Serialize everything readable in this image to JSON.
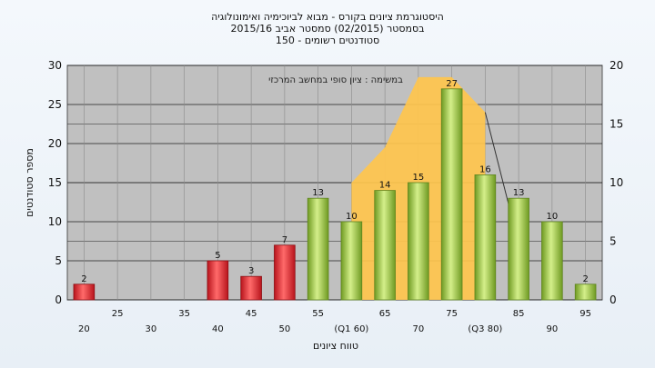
{
  "header": {
    "title_line1": "היסטוגרמת ציונים בקורס - מבוא לביוכימיה ואימונולוגיה",
    "title_line2": "בסמסטר  (02/2015)  סמסטר אביב 2015/16",
    "title_line3": "סטודנטים רשומים - 150"
  },
  "chart_data": {
    "type": "bar",
    "title": "היסטוגרמת ציונים בקורס - מבוא לביוכימיה ואימונולוגיה",
    "annotation": "במשימה : ציון סופי במחשב המרכזי",
    "xlabel": "טווח ציונים",
    "ylabel": "מספר סטודנטים",
    "categories": [
      "20",
      "25",
      "30",
      "35",
      "40",
      "45",
      "50",
      "55",
      "60",
      "65",
      "70",
      "75",
      "80",
      "85",
      "90",
      "95"
    ],
    "category_labels": [
      "20",
      "25",
      "30",
      "35",
      "40",
      "45",
      "50",
      "55",
      "(Q1 60)",
      "65",
      "70",
      "75",
      "(Q3 80)",
      "85",
      "90",
      "95"
    ],
    "values": [
      2,
      0,
      0,
      0,
      5,
      3,
      7,
      13,
      10,
      14,
      15,
      27,
      16,
      13,
      10,
      2
    ],
    "bar_colors": [
      "red",
      "red",
      "red",
      "red",
      "red",
      "red",
      "red",
      "green",
      "green",
      "green",
      "green",
      "green",
      "green",
      "green",
      "green",
      "green"
    ],
    "ylim": [
      0,
      30
    ],
    "y_ticks": [
      0,
      5,
      10,
      15,
      20,
      25,
      30
    ],
    "y2lim": [
      0,
      20
    ],
    "y2_ticks": [
      0,
      5,
      10,
      15,
      20
    ],
    "quartile_band": {
      "from": "60",
      "to": "80"
    },
    "colors": {
      "plot_bg": "#c0c0c0",
      "red_bar": "#d9232b",
      "green_bar": "#8fbf3a",
      "band": "#ffc54d"
    },
    "grid": true
  }
}
